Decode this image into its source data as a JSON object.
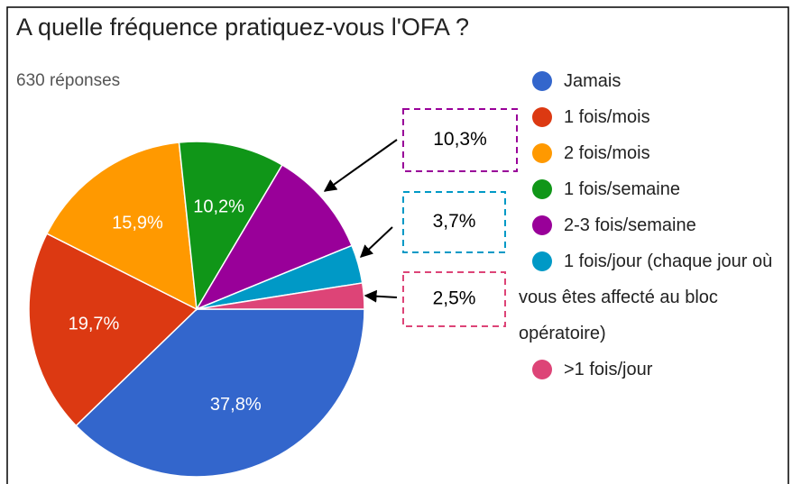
{
  "chart_data": {
    "type": "pie",
    "title": "A quelle fréquence pratiquez-vous l'OFA ?",
    "subtitle": "630 réponses",
    "categories": [
      "Jamais",
      "1 fois/mois",
      "2 fois/mois",
      "1 fois/semaine",
      "2-3 fois/semaine",
      "1 fois/jour (chaque jour où vous êtes affecté au bloc opératoire)",
      ">1 fois/jour"
    ],
    "values": [
      37.8,
      19.7,
      15.9,
      10.2,
      10.3,
      3.7,
      2.5
    ],
    "value_labels": [
      "37,8%",
      "19,7%",
      "15,9%",
      "10,2%",
      "10,3%",
      "3,7%",
      "2,5%"
    ],
    "colors": [
      "#3366cc",
      "#dc3912",
      "#ff9900",
      "#109618",
      "#990099",
      "#0099c6",
      "#dd4477"
    ],
    "legend": "right"
  }
}
